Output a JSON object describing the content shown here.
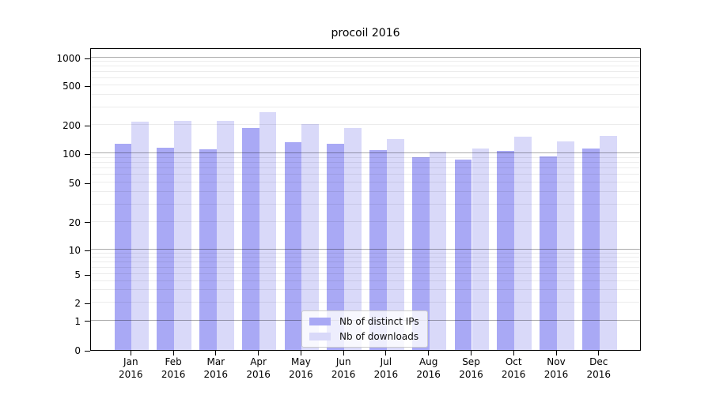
{
  "title": "procoil 2016",
  "chart_data": {
    "type": "bar",
    "title": "procoil 2016",
    "categories": [
      "Jan",
      "Feb",
      "Mar",
      "Apr",
      "May",
      "Jun",
      "Jul",
      "Aug",
      "Sep",
      "Oct",
      "Nov",
      "Dec"
    ],
    "category_year": "2016",
    "series": [
      {
        "name": "Nb of distinct IPs",
        "color": "#a9a9f5",
        "values": [
          127,
          114,
          110,
          186,
          131,
          127,
          108,
          91,
          86,
          106,
          93,
          112
        ]
      },
      {
        "name": "Nb of downloads",
        "color": "#d9d9f9",
        "values": [
          215,
          220,
          220,
          270,
          204,
          185,
          141,
          105,
          113,
          149,
          134,
          154
        ]
      }
    ],
    "xlabel": "",
    "ylabel": "",
    "yscale": "log-like (symlog, linear below 1)",
    "yticks": [
      0,
      1,
      2,
      5,
      10,
      20,
      50,
      100,
      200,
      500,
      1000
    ],
    "major_gridline_values": [
      1,
      10,
      100,
      1000
    ],
    "ylim": [
      0,
      1250
    ],
    "grid": true,
    "grid_on_top": true,
    "legend_position": "lower center"
  },
  "legend": {
    "items": [
      {
        "label": "Nb of distinct IPs",
        "color": "#a9a9f5"
      },
      {
        "label": "Nb of downloads",
        "color": "#d9d9f9"
      }
    ]
  },
  "colors": {
    "background": "#ffffff",
    "bar_distinct_ips": "#a9a9f5",
    "bar_downloads": "#d9d9f9",
    "major_grid": "#aaaaaa",
    "minor_grid": "#ebebeb",
    "axis": "#000000",
    "legend_border": "#cccccc"
  }
}
